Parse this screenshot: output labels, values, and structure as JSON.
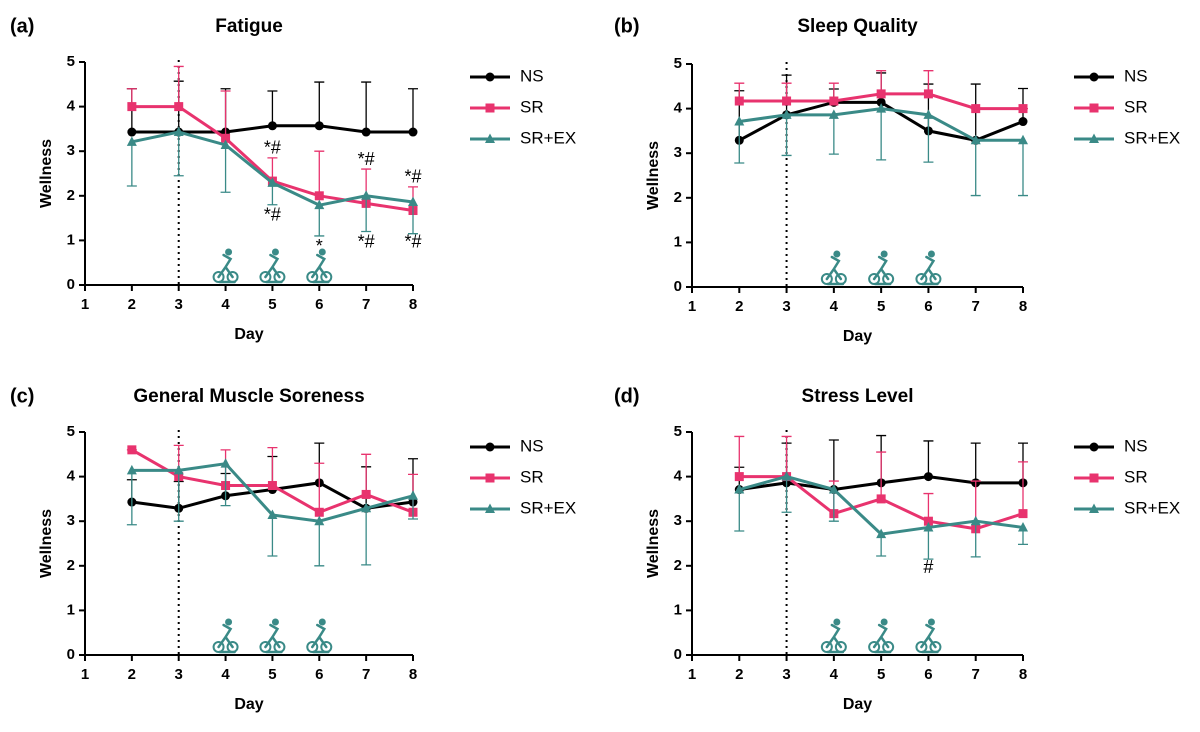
{
  "chart_data": [
    {
      "type": "line",
      "panel": "(a)",
      "title": "Fatigue",
      "x_label": "Day",
      "y_label": "Wellness",
      "x": [
        2,
        3,
        4,
        5,
        6,
        7,
        8
      ],
      "xlim": [
        1,
        8
      ],
      "xticks": [
        1,
        2,
        3,
        4,
        5,
        6,
        7,
        8
      ],
      "ylim": [
        0,
        5
      ],
      "yticks": [
        0,
        1,
        2,
        3,
        4,
        5
      ],
      "vline": 3,
      "exercise_days": [
        4,
        5,
        6
      ],
      "series": [
        {
          "name": "NS",
          "color": "#000000",
          "marker": "circle",
          "error_direction": "up",
          "values": [
            3.43,
            3.43,
            3.43,
            3.57,
            3.57,
            3.43,
            3.43
          ],
          "errors": [
            0.97,
            1.14,
            0.97,
            0.78,
            0.98,
            1.12,
            0.97
          ]
        },
        {
          "name": "SR",
          "color": "#e8336e",
          "marker": "square",
          "error_direction": "up",
          "values": [
            4,
            4,
            3.29,
            2.33,
            2,
            1.83,
            1.67
          ],
          "errors": [
            0.4,
            0.9,
            1.06,
            0.52,
            1.0,
            0.77,
            0.53
          ]
        },
        {
          "name": "SR+EX",
          "color": "#3a8a87",
          "marker": "triangle",
          "error_direction": "down",
          "values": [
            3.21,
            3.43,
            3.14,
            2.29,
            1.79,
            2.0,
            1.86
          ],
          "errors": [
            0.99,
            0.98,
            1.06,
            0.49,
            0.69,
            0.8,
            0.71
          ]
        }
      ],
      "annotations": [
        {
          "text": "*#",
          "x": 5,
          "y": 3.05
        },
        {
          "text": "*#",
          "x": 7,
          "y": 2.8
        },
        {
          "text": "*#",
          "x": 8,
          "y": 2.4
        },
        {
          "text": "*#",
          "x": 5,
          "y": 1.55
        },
        {
          "text": "*",
          "x": 6,
          "y": 0.85
        },
        {
          "text": "*#",
          "x": 7,
          "y": 0.95
        },
        {
          "text": "*#",
          "x": 8,
          "y": 0.95
        }
      ]
    },
    {
      "type": "line",
      "panel": "(b)",
      "title": "Sleep Quality",
      "x_label": "Day",
      "y_label": "Wellness",
      "x": [
        2,
        3,
        4,
        5,
        6,
        7,
        8
      ],
      "xlim": [
        1,
        8
      ],
      "xticks": [
        1,
        2,
        3,
        4,
        5,
        6,
        7,
        8
      ],
      "ylim": [
        0,
        5
      ],
      "yticks": [
        0,
        1,
        2,
        3,
        4,
        5
      ],
      "vline": 3,
      "exercise_days": [
        4,
        5,
        6
      ],
      "series": [
        {
          "name": "NS",
          "color": "#000000",
          "marker": "circle",
          "error_direction": "up",
          "values": [
            3.29,
            3.86,
            4.14,
            4.14,
            3.5,
            3.29,
            3.71
          ],
          "errors": [
            1.11,
            0.89,
            0.3,
            0.66,
            1.05,
            1.26,
            0.74
          ]
        },
        {
          "name": "SR",
          "color": "#e8336e",
          "marker": "square",
          "error_direction": "up",
          "values": [
            4.17,
            4.17,
            4.17,
            4.33,
            4.33,
            4.0,
            4.0
          ],
          "errors": [
            0.4,
            0.4,
            0.4,
            0.52,
            0.52,
            0,
            0
          ]
        },
        {
          "name": "SR+EX",
          "color": "#3a8a87",
          "marker": "triangle",
          "error_direction": "down",
          "values": [
            3.71,
            3.86,
            3.86,
            4.0,
            3.86,
            3.29,
            3.29
          ],
          "errors": [
            0.93,
            0.91,
            0.88,
            1.15,
            1.06,
            1.24,
            1.24
          ]
        }
      ],
      "annotations": []
    },
    {
      "type": "line",
      "panel": "(c)",
      "title": "General Muscle Soreness",
      "x_label": "Day",
      "y_label": "Wellness",
      "x": [
        2,
        3,
        4,
        5,
        6,
        7,
        8
      ],
      "xlim": [
        1,
        8
      ],
      "xticks": [
        1,
        2,
        3,
        4,
        5,
        6,
        7,
        8
      ],
      "ylim": [
        0,
        5
      ],
      "yticks": [
        0,
        1,
        2,
        3,
        4,
        5
      ],
      "vline": 3,
      "exercise_days": [
        4,
        5,
        6
      ],
      "series": [
        {
          "name": "NS",
          "color": "#000000",
          "marker": "circle",
          "error_direction": "up",
          "values": [
            3.43,
            3.29,
            3.57,
            3.71,
            3.86,
            3.29,
            3.43
          ],
          "errors": [
            0.5,
            0.6,
            0.5,
            0.74,
            0.89,
            0.93,
            0.97
          ]
        },
        {
          "name": "SR",
          "color": "#e8336e",
          "marker": "square",
          "error_direction": "up",
          "values": [
            4.6,
            4.0,
            3.8,
            3.8,
            3.2,
            3.6,
            3.2
          ],
          "errors": [
            0,
            0.7,
            0.8,
            0.85,
            1.1,
            0.9,
            0.85
          ]
        },
        {
          "name": "SR+EX",
          "color": "#3a8a87",
          "marker": "triangle",
          "error_direction": "down",
          "values": [
            4.14,
            4.14,
            4.29,
            3.14,
            3.0,
            3.29,
            3.57
          ],
          "errors": [
            1.22,
            1.14,
            0.94,
            0.92,
            1.0,
            1.27,
            0.52
          ]
        }
      ],
      "annotations": []
    },
    {
      "type": "line",
      "panel": "(d)",
      "title": "Stress Level",
      "x_label": "Day",
      "y_label": "Wellness",
      "x": [
        2,
        3,
        4,
        5,
        6,
        7,
        8
      ],
      "xlim": [
        1,
        8
      ],
      "xticks": [
        1,
        2,
        3,
        4,
        5,
        6,
        7,
        8
      ],
      "ylim": [
        0,
        5
      ],
      "yticks": [
        0,
        1,
        2,
        3,
        4,
        5
      ],
      "vline": 3,
      "exercise_days": [
        4,
        5,
        6
      ],
      "series": [
        {
          "name": "NS",
          "color": "#000000",
          "marker": "circle",
          "error_direction": "up",
          "values": [
            3.71,
            3.86,
            3.71,
            3.86,
            4.0,
            3.86,
            3.86
          ],
          "errors": [
            0.5,
            0.89,
            1.11,
            1.06,
            0.8,
            0.89,
            0.89
          ]
        },
        {
          "name": "SR",
          "color": "#e8336e",
          "marker": "square",
          "error_direction": "up",
          "values": [
            4,
            4,
            3.17,
            3.5,
            3.0,
            2.83,
            3.17
          ],
          "errors": [
            0.9,
            0.9,
            0.73,
            1.05,
            0.62,
            1.07,
            1.16
          ]
        },
        {
          "name": "SR+EX",
          "color": "#3a8a87",
          "marker": "triangle",
          "error_direction": "down",
          "values": [
            3.71,
            4.0,
            3.71,
            2.71,
            2.86,
            3.0,
            2.86
          ],
          "errors": [
            0.93,
            0.8,
            0.71,
            0.49,
            0.71,
            0.8,
            0.38
          ]
        }
      ],
      "annotations": [
        {
          "text": "#",
          "x": 6,
          "y": 1.95
        }
      ]
    }
  ]
}
